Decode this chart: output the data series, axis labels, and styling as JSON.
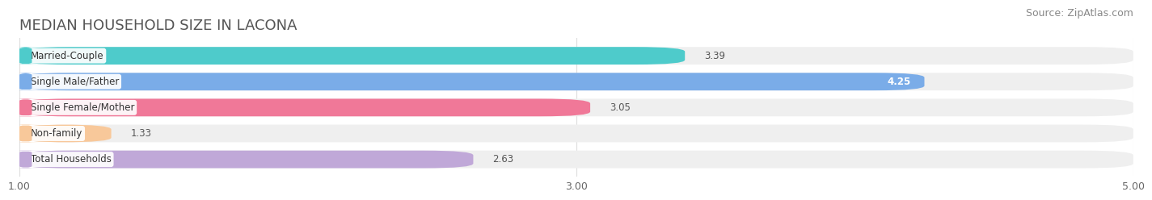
{
  "title": "MEDIAN HOUSEHOLD SIZE IN LACONA",
  "source": "Source: ZipAtlas.com",
  "categories": [
    "Married-Couple",
    "Single Male/Father",
    "Single Female/Mother",
    "Non-family",
    "Total Households"
  ],
  "values": [
    3.39,
    4.25,
    3.05,
    1.33,
    2.63
  ],
  "bar_colors": [
    "#4ecbcb",
    "#7aace8",
    "#f07898",
    "#f8c89a",
    "#c0a8d8"
  ],
  "bar_bg_colors": [
    "#efefef",
    "#efefef",
    "#efefef",
    "#efefef",
    "#efefef"
  ],
  "tab_colors": [
    "#4ecbcb",
    "#7aace8",
    "#f07898",
    "#f8c89a",
    "#c0a8d8"
  ],
  "xlim": [
    1.0,
    5.0
  ],
  "xstart": 1.0,
  "xticks": [
    1.0,
    3.0,
    5.0
  ],
  "label_inside": [
    false,
    true,
    false,
    false,
    false
  ],
  "title_fontsize": 13,
  "source_fontsize": 9,
  "bar_label_fontsize": 8.5,
  "value_fontsize": 8.5,
  "tick_fontsize": 9,
  "background_color": "#ffffff",
  "grid_color": "#dddddd"
}
